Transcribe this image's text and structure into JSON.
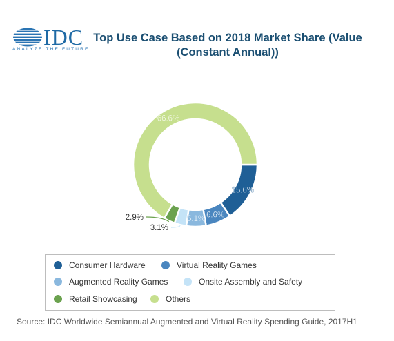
{
  "logo": {
    "wordmark": "IDC",
    "tagline": "ANALYZE THE FUTURE",
    "color": "#1f6aa5"
  },
  "chart_data": {
    "type": "pie",
    "variant": "donut",
    "title": "Top Use Case Based on 2018 Market Share (Value (Constant Annual))",
    "series": [
      {
        "name": "Consumer Hardware",
        "value": 15.6,
        "label": "15.6%",
        "color": "#1f5f96"
      },
      {
        "name": "Virtual Reality Games",
        "value": 6.6,
        "label": "6.6%",
        "color": "#4a86bf"
      },
      {
        "name": "Augmented Reality Games",
        "value": 5.1,
        "label": "5.1%",
        "color": "#8ab8de"
      },
      {
        "name": "Onsite Assembly and Safety",
        "value": 3.1,
        "label": "3.1%",
        "color": "#c4e3f7"
      },
      {
        "name": "Retail Showcasing",
        "value": 2.9,
        "label": "2.9%",
        "color": "#6ba24f"
      },
      {
        "name": "Others",
        "value": 66.6,
        "label": "66.6%",
        "color": "#c6df8e"
      }
    ],
    "legend_position": "bottom"
  },
  "source": "Source: IDC Worldwide Semiannual Augmented and Virtual Reality Spending Guide, 2017H1"
}
